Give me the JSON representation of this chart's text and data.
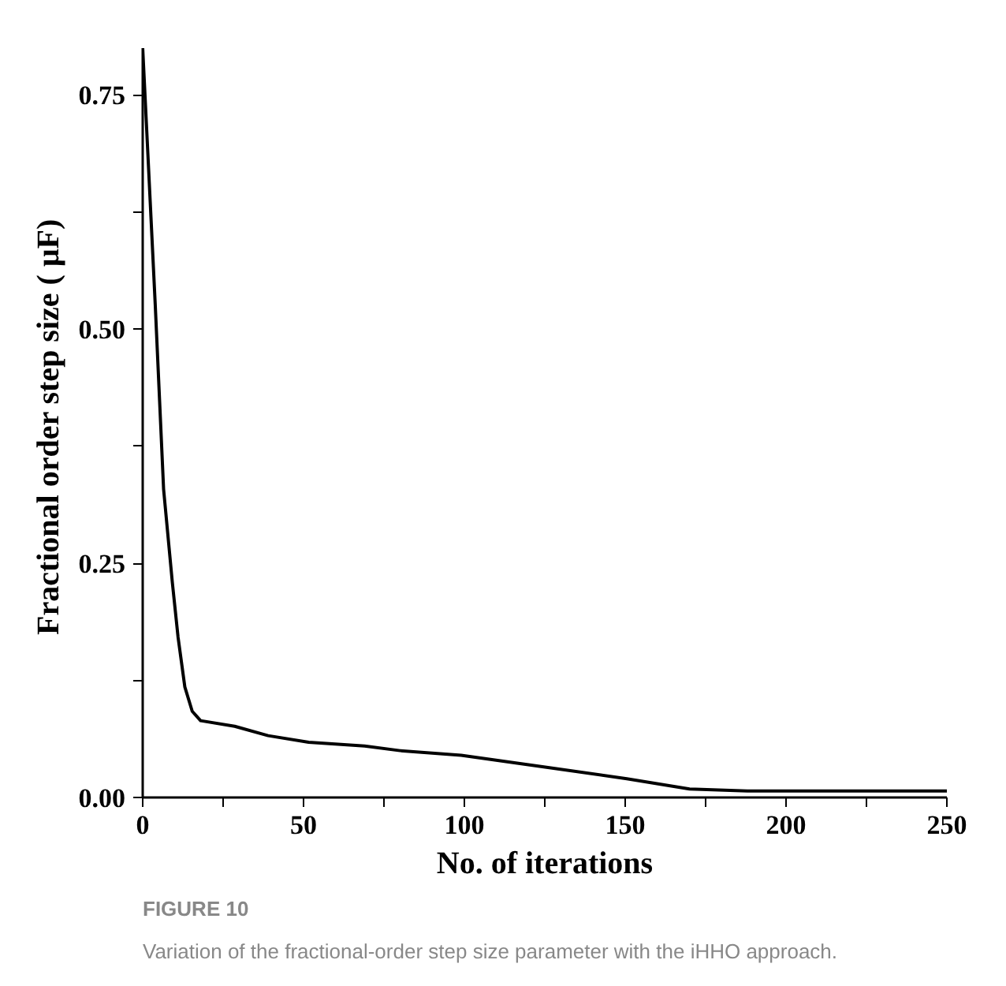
{
  "chart_data": {
    "type": "line",
    "xlabel": "No. of iterations",
    "ylabel": "Fractional  order step size ( μF)",
    "x": [
      0,
      3.9,
      6.5,
      9.2,
      11,
      13.1,
      15.4,
      18,
      28.6,
      39,
      51.6,
      69,
      80,
      99,
      126,
      150.5,
      170,
      188,
      250
    ],
    "series": [
      {
        "color": "#000000",
        "values": [
          0.8,
          0.526,
          0.329,
          0.23,
          0.171,
          0.118,
          0.092,
          0.082,
          0.076,
          0.066,
          0.059,
          0.055,
          0.05,
          0.045,
          0.032,
          0.02,
          0.009,
          0.007,
          0.007
        ]
      }
    ],
    "xlim": [
      0,
      250
    ],
    "ylim": [
      0,
      0.8
    ],
    "xticks": [
      0,
      {
        "value": 25,
        "label": null
      },
      50,
      {
        "value": 75,
        "label": null
      },
      100,
      {
        "value": 125,
        "label": null
      },
      150,
      {
        "value": 175,
        "label": null
      },
      200,
      {
        "value": 225,
        "label": null
      },
      250
    ],
    "yticks": [
      {
        "value": 0,
        "label": "0.00"
      },
      {
        "value": 0.125,
        "label": null
      },
      {
        "value": 0.25,
        "label": "0.25"
      },
      {
        "value": 0.375,
        "label": null
      },
      {
        "value": 0.5,
        "label": "0.50"
      },
      {
        "value": 0.625,
        "label": null
      },
      {
        "value": 0.75,
        "label": "0.75"
      }
    ],
    "grid": false,
    "marker": "none",
    "line_style": "solid",
    "annotations": [
      "FIGURE 10",
      "Variation of the fractional-order step size parameter with the iHHO approach."
    ]
  }
}
